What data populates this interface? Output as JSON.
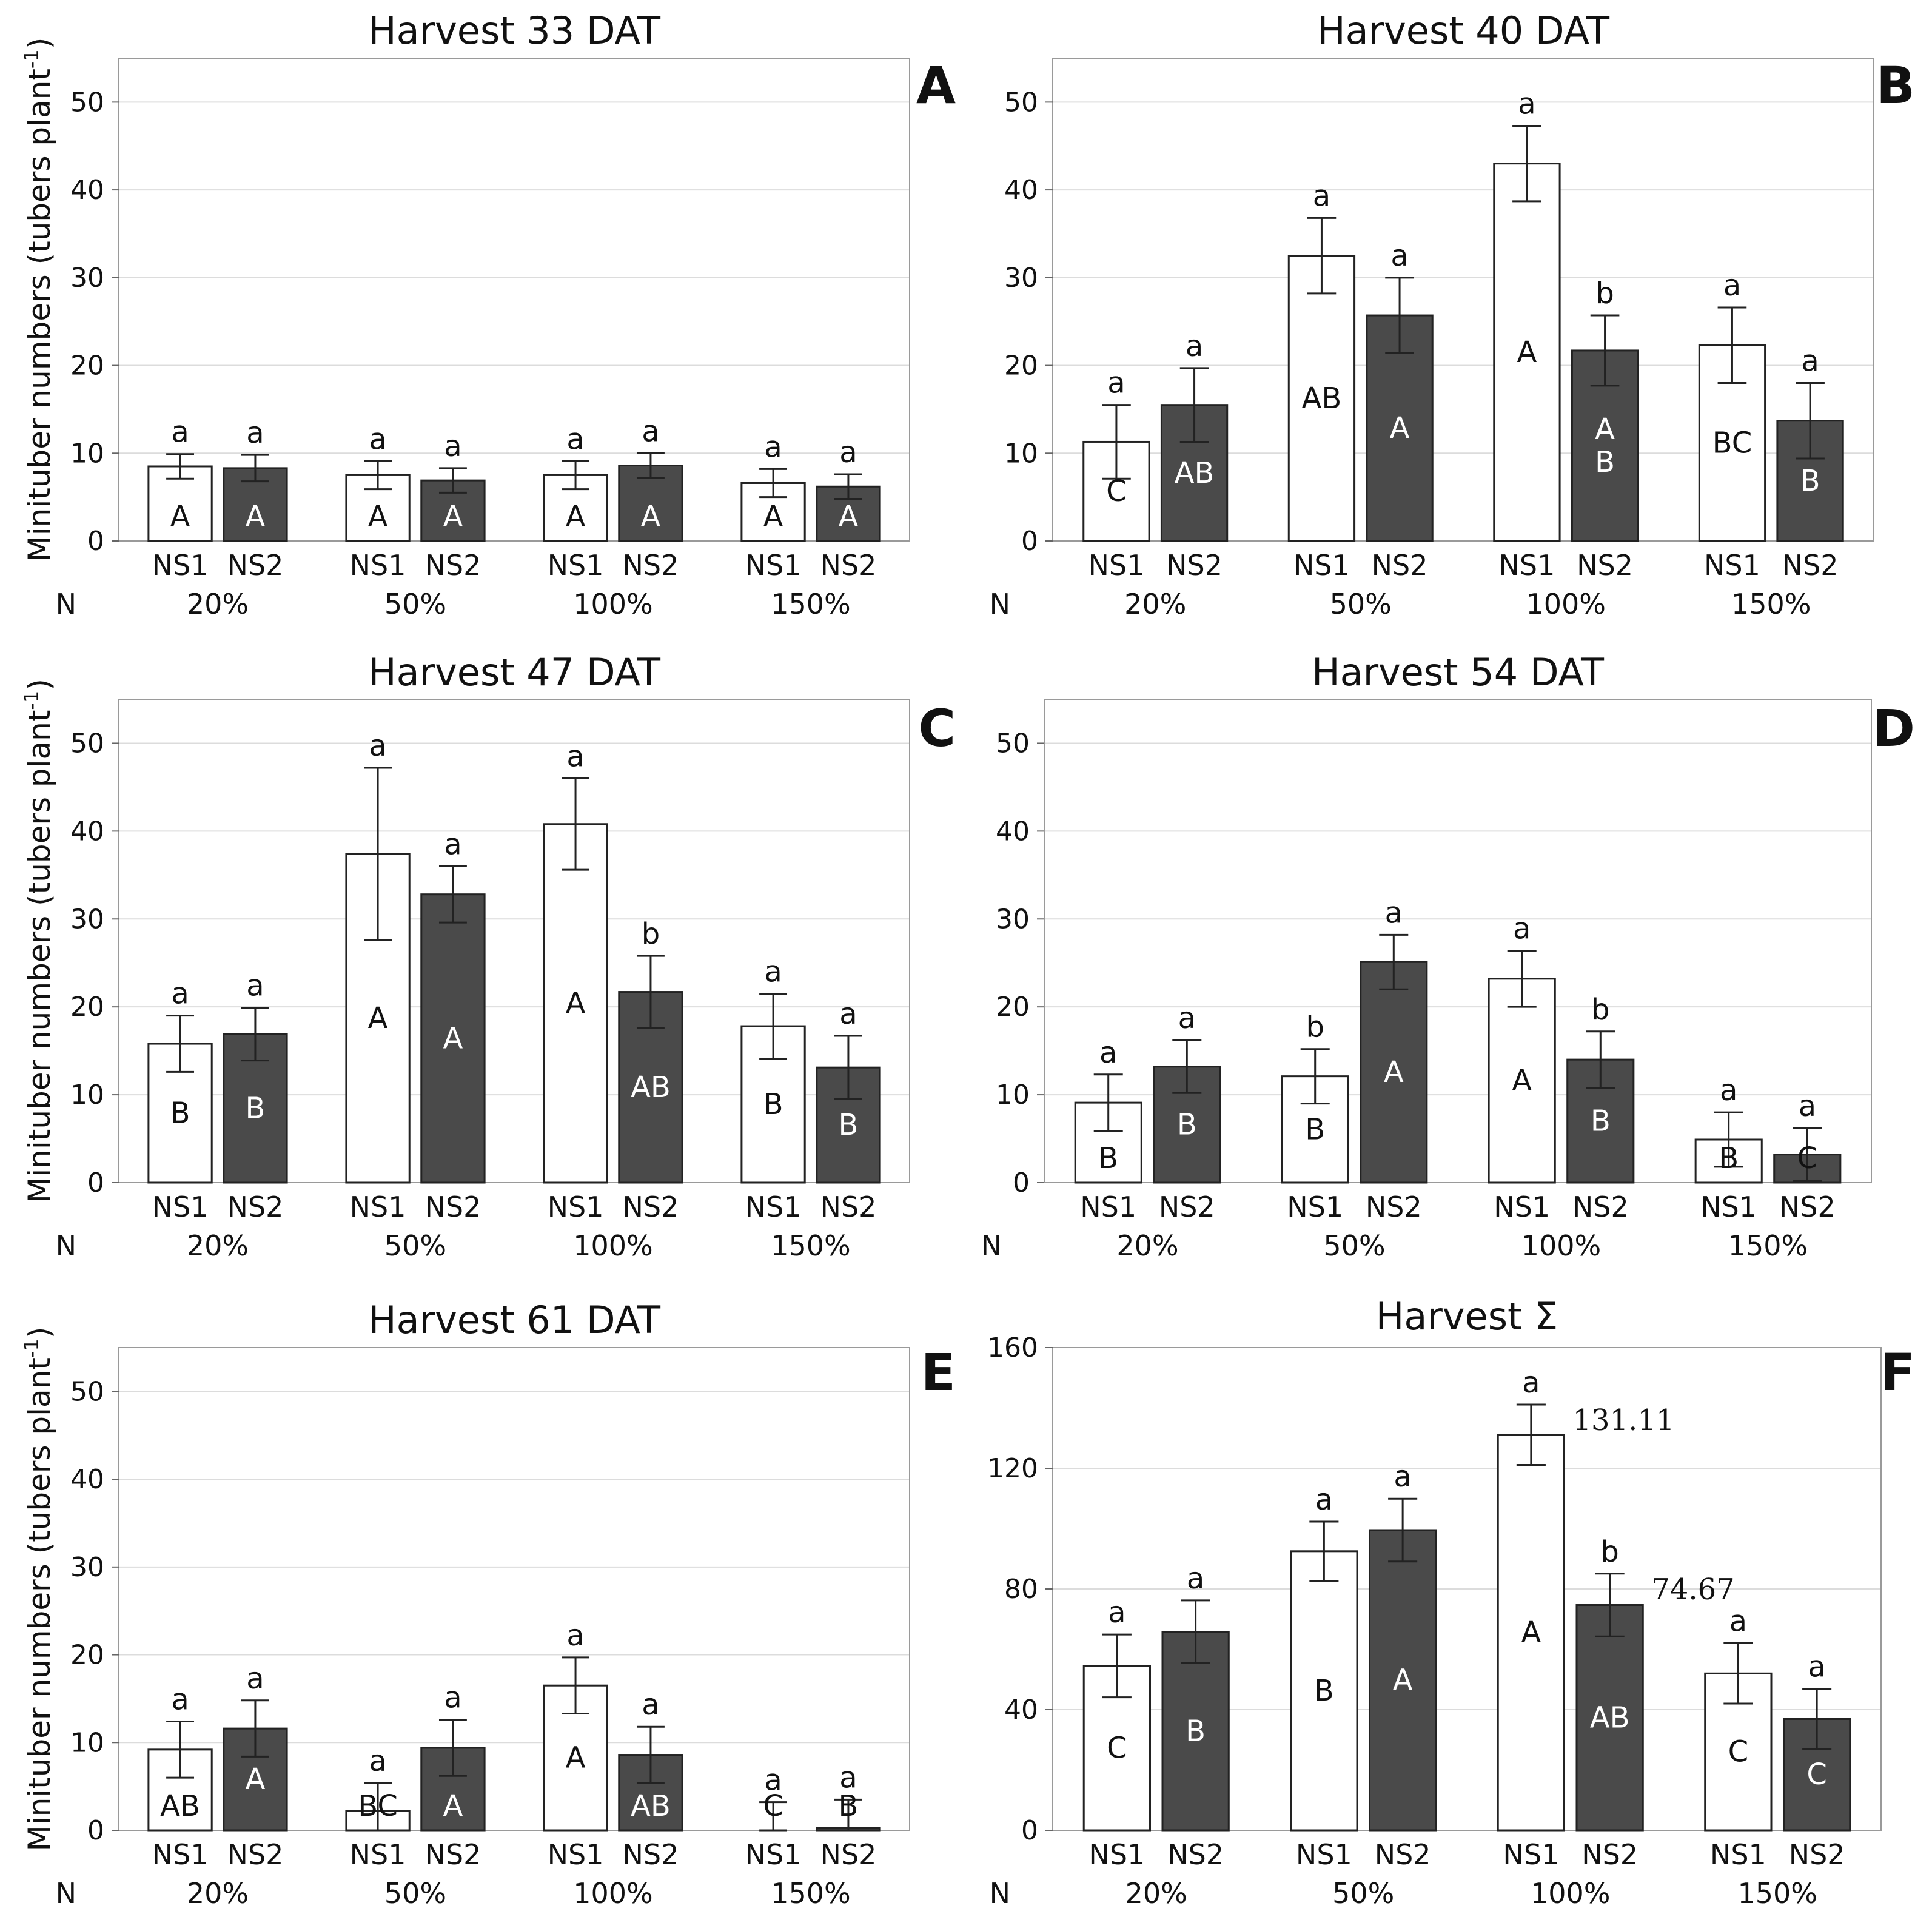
{
  "figure": {
    "ylabel_text": "Minituber numbers (tubers plant",
    "ylabel_sup": "-1",
    "ylabel_close": ")",
    "n_label": "N",
    "bar_colors": {
      "NS1": "#ffffff",
      "NS2": "#4a4a4a"
    },
    "upper_text_colors": {
      "NS1": "#111111",
      "NS2": "#ffffff"
    }
  },
  "chart_data": [
    {
      "type": "bar",
      "panel": "A",
      "title": "Harvest 33 DAT",
      "groups": [
        "20%",
        "50%",
        "100%",
        "150%"
      ],
      "series_names": [
        "NS1",
        "NS2"
      ],
      "ylim": [
        0,
        55
      ],
      "yticks": [
        0,
        10,
        20,
        30,
        40,
        50
      ],
      "show_ylabel": true,
      "bars": [
        {
          "group": "20%",
          "series": "NS1",
          "value": 8.5,
          "err": 1.4,
          "lower": "a",
          "upper": "A"
        },
        {
          "group": "20%",
          "series": "NS2",
          "value": 8.3,
          "err": 1.5,
          "lower": "a",
          "upper": "A"
        },
        {
          "group": "50%",
          "series": "NS1",
          "value": 7.5,
          "err": 1.6,
          "lower": "a",
          "upper": "A"
        },
        {
          "group": "50%",
          "series": "NS2",
          "value": 6.9,
          "err": 1.4,
          "lower": "a",
          "upper": "A"
        },
        {
          "group": "100%",
          "series": "NS1",
          "value": 7.5,
          "err": 1.6,
          "lower": "a",
          "upper": "A"
        },
        {
          "group": "100%",
          "series": "NS2",
          "value": 8.6,
          "err": 1.4,
          "lower": "a",
          "upper": "A"
        },
        {
          "group": "150%",
          "series": "NS1",
          "value": 6.6,
          "err": 1.6,
          "lower": "a",
          "upper": "A"
        },
        {
          "group": "150%",
          "series": "NS2",
          "value": 6.2,
          "err": 1.4,
          "lower": "a",
          "upper": "A"
        }
      ]
    },
    {
      "type": "bar",
      "panel": "B",
      "title": "Harvest 40 DAT",
      "groups": [
        "20%",
        "50%",
        "100%",
        "150%"
      ],
      "series_names": [
        "NS1",
        "NS2"
      ],
      "ylim": [
        0,
        55
      ],
      "yticks": [
        0,
        10,
        20,
        30,
        40,
        50
      ],
      "show_ylabel": false,
      "bars": [
        {
          "group": "20%",
          "series": "NS1",
          "value": 11.3,
          "err": 4.2,
          "lower": "a",
          "upper": "C"
        },
        {
          "group": "20%",
          "series": "NS2",
          "value": 15.5,
          "err": 4.2,
          "lower": "a",
          "upper": "AB"
        },
        {
          "group": "50%",
          "series": "NS1",
          "value": 32.5,
          "err": 4.3,
          "lower": "a",
          "upper": "AB"
        },
        {
          "group": "50%",
          "series": "NS2",
          "value": 25.7,
          "err": 4.3,
          "lower": "a",
          "upper": "A"
        },
        {
          "group": "100%",
          "series": "NS1",
          "value": 43.0,
          "err": 4.3,
          "lower": "a",
          "upper": "A"
        },
        {
          "group": "100%",
          "series": "NS2",
          "value": 21.7,
          "err": 4.0,
          "lower": "b",
          "upper": "A\nB"
        },
        {
          "group": "150%",
          "series": "NS1",
          "value": 22.3,
          "err": 4.3,
          "lower": "a",
          "upper": "BC"
        },
        {
          "group": "150%",
          "series": "NS2",
          "value": 13.7,
          "err": 4.3,
          "lower": "a",
          "upper": "B"
        }
      ]
    },
    {
      "type": "bar",
      "panel": "C",
      "title": "Harvest 47 DAT",
      "groups": [
        "20%",
        "50%",
        "100%",
        "150%"
      ],
      "series_names": [
        "NS1",
        "NS2"
      ],
      "ylim": [
        0,
        55
      ],
      "yticks": [
        0,
        10,
        20,
        30,
        40,
        50
      ],
      "show_ylabel": true,
      "bars": [
        {
          "group": "20%",
          "series": "NS1",
          "value": 15.8,
          "err": 3.2,
          "lower": "a",
          "upper": "B"
        },
        {
          "group": "20%",
          "series": "NS2",
          "value": 16.9,
          "err": 3.0,
          "lower": "a",
          "upper": "B"
        },
        {
          "group": "50%",
          "series": "NS1",
          "value": 37.4,
          "err": 9.8,
          "lower": "a",
          "upper": "A"
        },
        {
          "group": "50%",
          "series": "NS2",
          "value": 32.8,
          "err": 3.2,
          "lower": "a",
          "upper": "A"
        },
        {
          "group": "100%",
          "series": "NS1",
          "value": 40.8,
          "err": 5.2,
          "lower": "a",
          "upper": "A"
        },
        {
          "group": "100%",
          "series": "NS2",
          "value": 21.7,
          "err": 4.1,
          "lower": "b",
          "upper": "AB"
        },
        {
          "group": "150%",
          "series": "NS1",
          "value": 17.8,
          "err": 3.7,
          "lower": "a",
          "upper": "B"
        },
        {
          "group": "150%",
          "series": "NS2",
          "value": 13.1,
          "err": 3.6,
          "lower": "a",
          "upper": "B"
        }
      ]
    },
    {
      "type": "bar",
      "panel": "D",
      "title": "Harvest 54 DAT",
      "groups": [
        "20%",
        "50%",
        "100%",
        "150%"
      ],
      "series_names": [
        "NS1",
        "NS2"
      ],
      "ylim": [
        0,
        55
      ],
      "yticks": [
        0,
        10,
        20,
        30,
        40,
        50
      ],
      "show_ylabel": false,
      "bars": [
        {
          "group": "20%",
          "series": "NS1",
          "value": 9.1,
          "err": 3.2,
          "lower": "a",
          "upper": "B"
        },
        {
          "group": "20%",
          "series": "NS2",
          "value": 13.2,
          "err": 3.0,
          "lower": "a",
          "upper": "B"
        },
        {
          "group": "50%",
          "series": "NS1",
          "value": 12.1,
          "err": 3.1,
          "lower": "b",
          "upper": "B"
        },
        {
          "group": "50%",
          "series": "NS2",
          "value": 25.1,
          "err": 3.1,
          "lower": "a",
          "upper": "A"
        },
        {
          "group": "100%",
          "series": "NS1",
          "value": 23.2,
          "err": 3.2,
          "lower": "a",
          "upper": "A"
        },
        {
          "group": "100%",
          "series": "NS2",
          "value": 14.0,
          "err": 3.2,
          "lower": "b",
          "upper": "B"
        },
        {
          "group": "150%",
          "series": "NS1",
          "value": 4.9,
          "err": 3.1,
          "lower": "a",
          "upper": "B"
        },
        {
          "group": "150%",
          "series": "NS2",
          "value": 3.2,
          "err": 3.0,
          "lower": "a",
          "upper": "C"
        }
      ]
    },
    {
      "type": "bar",
      "panel": "E",
      "title": "Harvest 61 DAT",
      "groups": [
        "20%",
        "50%",
        "100%",
        "150%"
      ],
      "series_names": [
        "NS1",
        "NS2"
      ],
      "ylim": [
        0,
        55
      ],
      "yticks": [
        0,
        10,
        20,
        30,
        40,
        50
      ],
      "show_ylabel": true,
      "bars": [
        {
          "group": "20%",
          "series": "NS1",
          "value": 9.2,
          "err": 3.2,
          "lower": "a",
          "upper": "AB"
        },
        {
          "group": "20%",
          "series": "NS2",
          "value": 11.6,
          "err": 3.2,
          "lower": "a",
          "upper": "A"
        },
        {
          "group": "50%",
          "series": "NS1",
          "value": 2.2,
          "err": 3.2,
          "lower": "a",
          "upper": "BC"
        },
        {
          "group": "50%",
          "series": "NS2",
          "value": 9.4,
          "err": 3.2,
          "lower": "a",
          "upper": "A"
        },
        {
          "group": "100%",
          "series": "NS1",
          "value": 16.5,
          "err": 3.2,
          "lower": "a",
          "upper": "A"
        },
        {
          "group": "100%",
          "series": "NS2",
          "value": 8.6,
          "err": 3.2,
          "lower": "a",
          "upper": "AB"
        },
        {
          "group": "150%",
          "series": "NS1",
          "value": 0.0,
          "err": 3.2,
          "lower": "a",
          "upper": "C"
        },
        {
          "group": "150%",
          "series": "NS2",
          "value": 0.3,
          "err": 3.2,
          "lower": "a",
          "upper": "B"
        }
      ]
    },
    {
      "type": "bar",
      "panel": "F",
      "title": "Harvest Σ",
      "groups": [
        "20%",
        "50%",
        "100%",
        "150%"
      ],
      "series_names": [
        "NS1",
        "NS2"
      ],
      "ylim": [
        0,
        160
      ],
      "yticks": [
        0,
        40,
        80,
        120,
        160
      ],
      "show_ylabel": false,
      "bars": [
        {
          "group": "20%",
          "series": "NS1",
          "value": 54.5,
          "err": 10.4,
          "lower": "a",
          "upper": "C"
        },
        {
          "group": "20%",
          "series": "NS2",
          "value": 65.8,
          "err": 10.4,
          "lower": "a",
          "upper": "B"
        },
        {
          "group": "50%",
          "series": "NS1",
          "value": 92.5,
          "err": 9.8,
          "lower": "a",
          "upper": "B"
        },
        {
          "group": "50%",
          "series": "NS2",
          "value": 99.5,
          "err": 10.4,
          "lower": "a",
          "upper": "A"
        },
        {
          "group": "100%",
          "series": "NS1",
          "value": 131.11,
          "err": 10.0,
          "lower": "a",
          "upper": "A",
          "value_label": "131.11"
        },
        {
          "group": "100%",
          "series": "NS2",
          "value": 74.67,
          "err": 10.4,
          "lower": "b",
          "upper": "AB",
          "value_label": "74.67"
        },
        {
          "group": "150%",
          "series": "NS1",
          "value": 52.0,
          "err": 10.0,
          "lower": "a",
          "upper": "C"
        },
        {
          "group": "150%",
          "series": "NS2",
          "value": 36.9,
          "err": 10.0,
          "lower": "a",
          "upper": "C"
        }
      ]
    }
  ]
}
